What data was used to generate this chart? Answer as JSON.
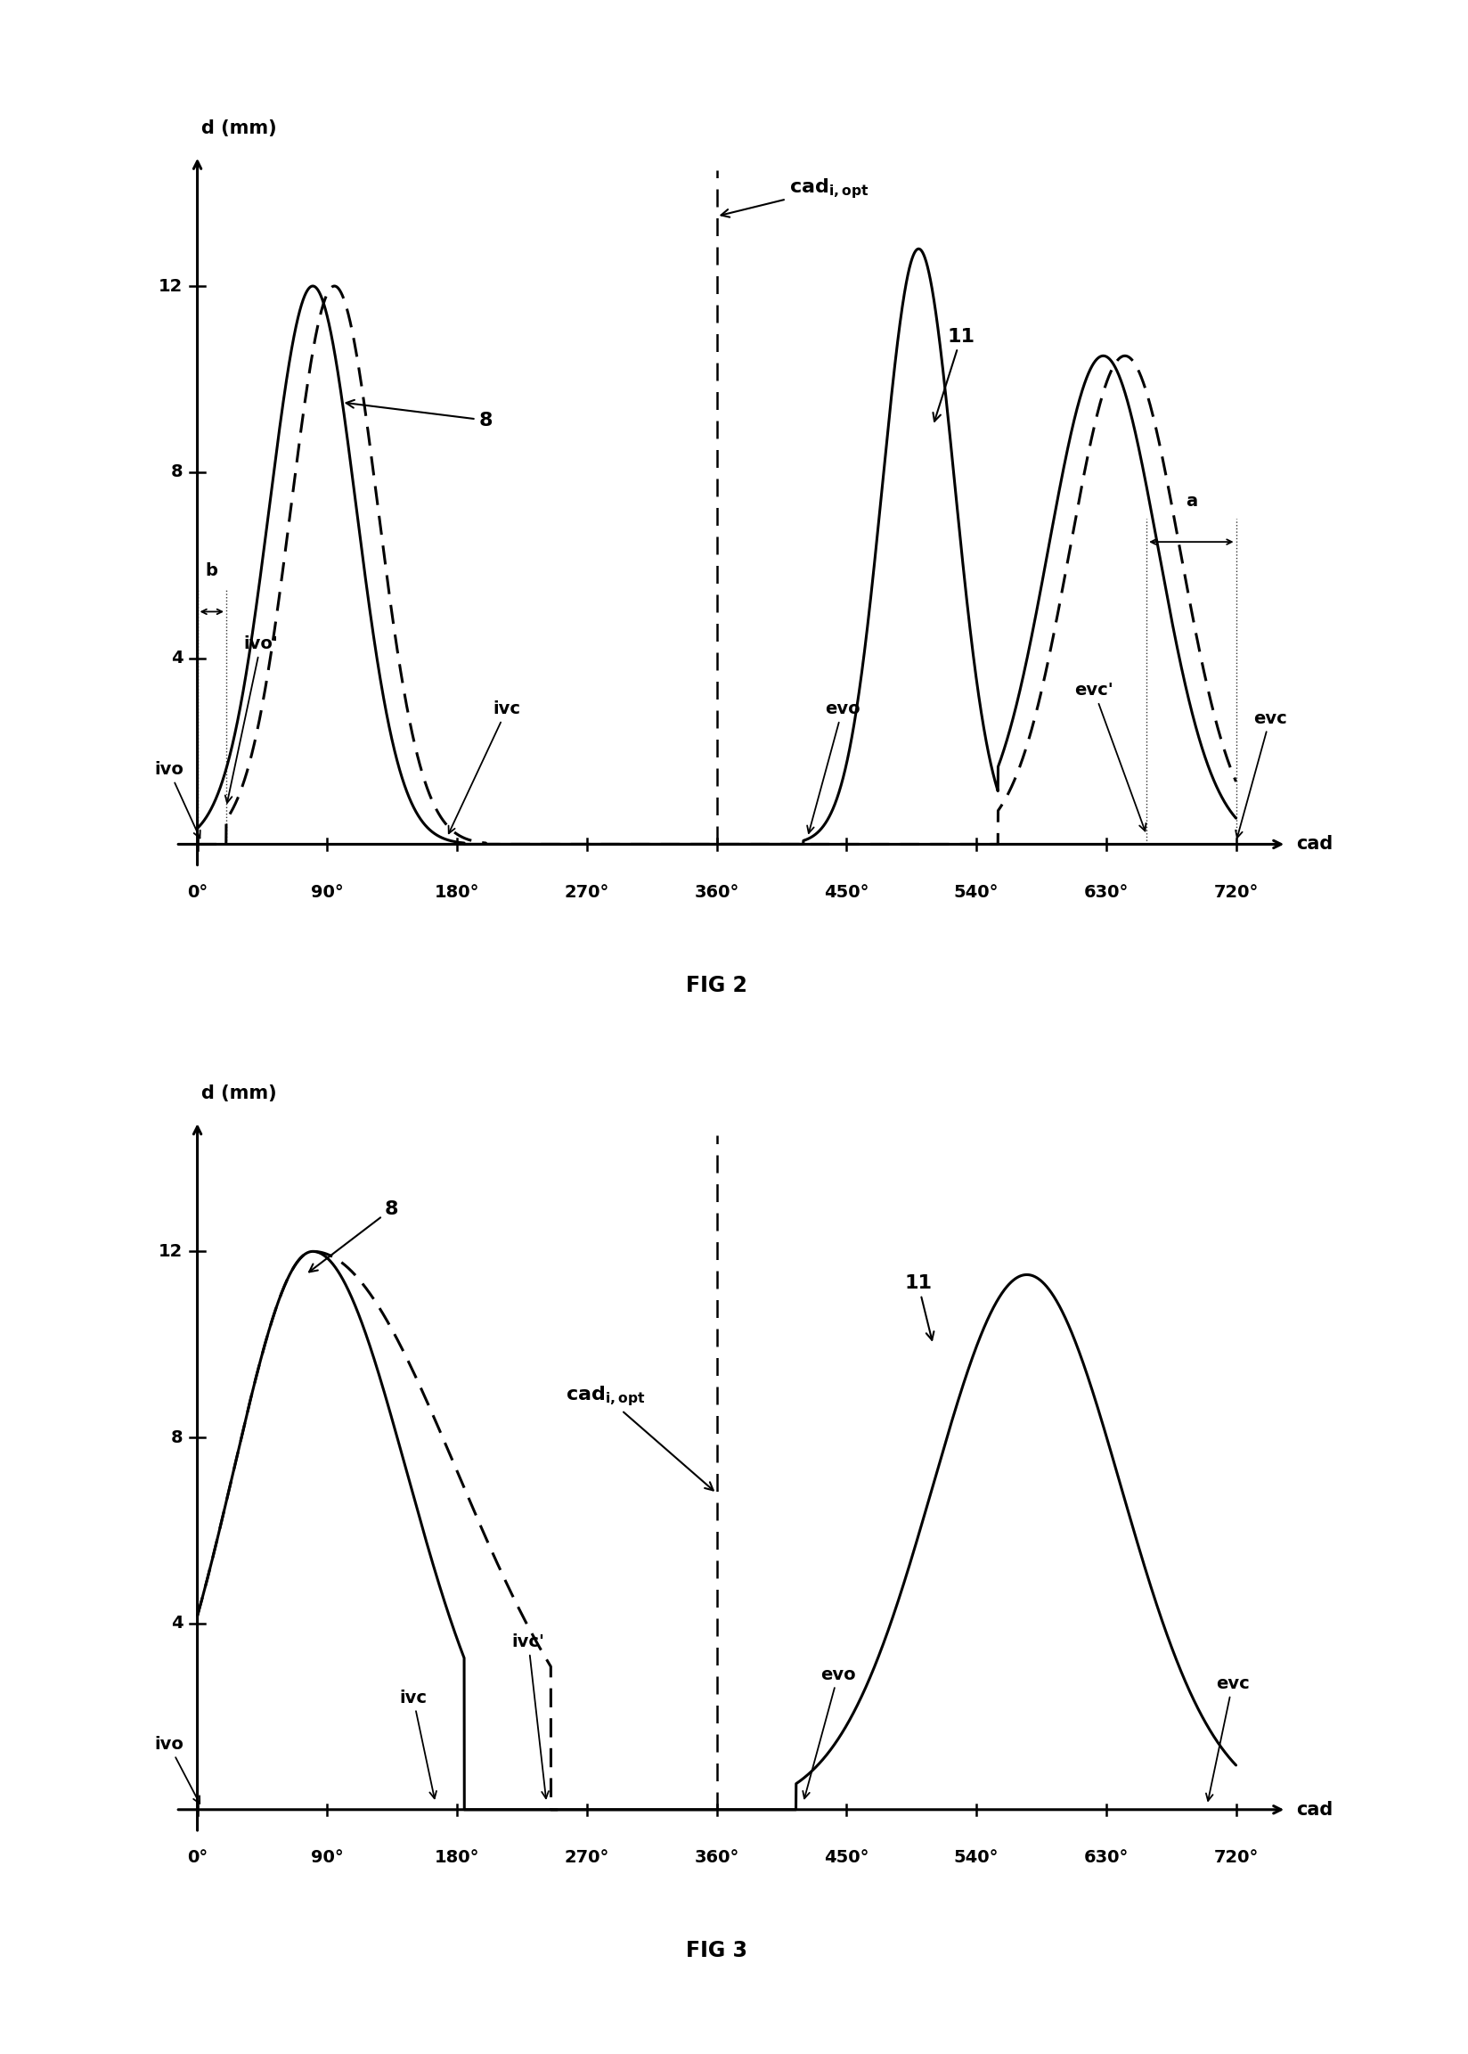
{
  "fig2": {
    "title": "FIG 2",
    "yticks": [
      4,
      8,
      12
    ],
    "xticks": [
      0,
      90,
      180,
      270,
      360,
      450,
      540,
      630,
      720
    ],
    "xtick_labels": [
      "0°",
      "90°",
      "180°",
      "270°",
      "360°",
      "450°",
      "540°",
      "630°",
      "720°"
    ],
    "dashed_x": 360,
    "solid_intake_peak": 80,
    "solid_intake_sigma_l": 30,
    "solid_intake_sigma_r": 30,
    "solid_intake_amp": 12.0,
    "solid_intake_start": 0,
    "solid_intake_end": 185,
    "dashed_intake_peak": 95,
    "dashed_intake_sigma_l": 30,
    "dashed_intake_sigma_r": 30,
    "dashed_intake_amp": 12.0,
    "dashed_intake_start": 20,
    "dashed_intake_end": 200,
    "exhaust_peak1_x": 500,
    "exhaust_peak1_amp": 12.8,
    "exhaust_peak1_sigma_l": 25,
    "exhaust_peak1_sigma_r": 25,
    "exhaust_peak1_start": 420,
    "exhaust_peak1_end": 555,
    "exhaust_peak2_x": 628,
    "exhaust_peak2_amp": 10.5,
    "exhaust_peak2_sigma_l": 38,
    "exhaust_peak2_sigma_r": 38,
    "exhaust_peak2_start": 555,
    "exhaust_peak2_end": 720,
    "dashed_exhaust_peak2_x": 643,
    "dashed_exhaust_peak2_amp": 10.5,
    "dashed_exhaust_peak2_sigma_l": 38,
    "dashed_exhaust_peak2_sigma_r": 38,
    "dashed_exhaust_start": 555,
    "dashed_exhaust_end": 720
  },
  "fig3": {
    "title": "FIG 3",
    "yticks": [
      4,
      8,
      12
    ],
    "xticks": [
      0,
      90,
      180,
      270,
      360,
      450,
      540,
      630,
      720
    ],
    "xtick_labels": [
      "0°",
      "90°",
      "180°",
      "270°",
      "360°",
      "450°",
      "540°",
      "630°",
      "720°"
    ],
    "dashed_x": 360,
    "solid_intake_peak": 80,
    "solid_intake_sigma_l": 55,
    "solid_intake_sigma_r": 65,
    "solid_intake_amp": 12.0,
    "solid_intake_start": 0,
    "solid_intake_end": 185,
    "dashed_intake_peak": 80,
    "dashed_intake_sigma_l": 55,
    "dashed_intake_sigma_r": 100,
    "dashed_intake_amp": 12.0,
    "dashed_intake_start": 0,
    "dashed_intake_end": 245,
    "exhaust_peak_x": 575,
    "exhaust_peak_amp": 11.5,
    "exhaust_peak_sigma_l": 65,
    "exhaust_peak_sigma_r": 65,
    "exhaust_start": 415,
    "exhaust_end": 720
  },
  "background_color": "#ffffff",
  "line_color": "#000000",
  "line_width": 2.2,
  "fontsize_label": 15,
  "fontsize_tick": 14,
  "fontsize_annot": 14,
  "fontsize_title": 17
}
